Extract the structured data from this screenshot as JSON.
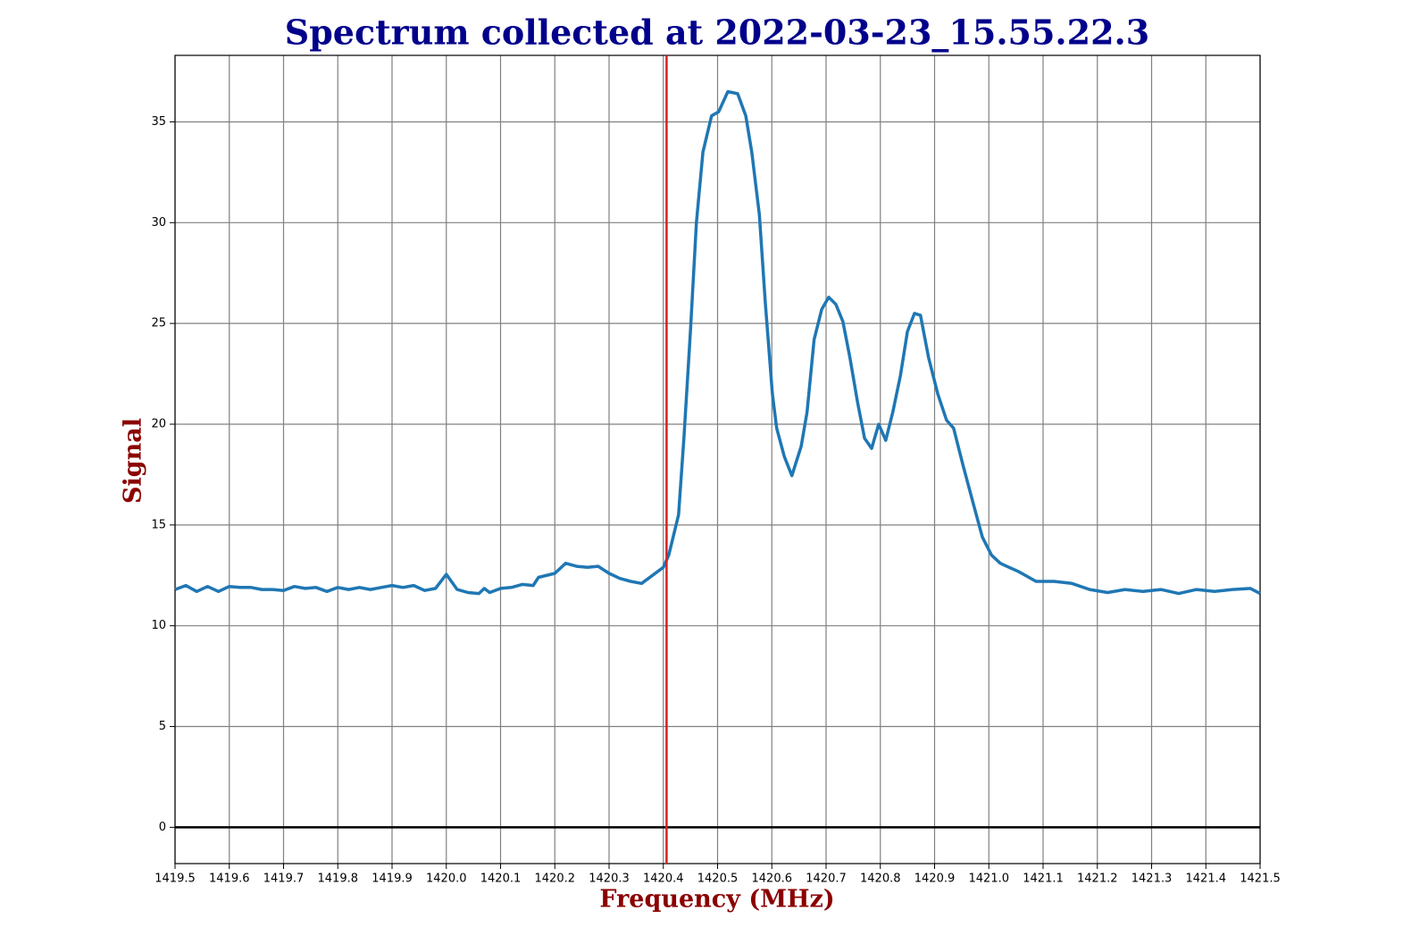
{
  "chart_data": {
    "type": "line",
    "title": "Spectrum collected at 2022-03-23_15.55.22.3",
    "xlabel": "Frequency (MHz)",
    "ylabel": "Signal",
    "color": "#1f77b4",
    "x": [
      1419.5,
      1419.52,
      1419.54,
      1419.56,
      1419.58,
      1419.6,
      1419.62,
      1419.64,
      1419.66,
      1419.68,
      1419.7,
      1419.72,
      1419.74,
      1419.76,
      1419.78,
      1419.8,
      1419.82,
      1419.84,
      1419.86,
      1419.88,
      1419.9,
      1419.92,
      1419.94,
      1419.96,
      1419.98,
      1420.0,
      1420.02,
      1420.04,
      1420.06,
      1420.07,
      1420.08,
      1420.1,
      1420.12,
      1420.14,
      1420.16,
      1420.17,
      1420.2,
      1420.22,
      1420.24,
      1420.26,
      1420.28,
      1420.3,
      1420.32,
      1420.34,
      1420.36,
      1420.38,
      1420.4,
      1420.41,
      1420.428,
      1420.438,
      1420.45,
      1420.461,
      1420.473,
      1420.489,
      1420.502,
      1420.519,
      1420.537,
      1420.552,
      1420.563,
      1420.577,
      1420.588,
      1420.601,
      1420.609,
      1420.623,
      1420.637,
      1420.654,
      1420.665,
      1420.678,
      1420.692,
      1420.705,
      1420.718,
      1420.731,
      1420.744,
      1420.758,
      1420.771,
      1420.784,
      1420.797,
      1420.81,
      1420.823,
      1420.837,
      1420.85,
      1420.863,
      1420.874,
      1420.889,
      1420.906,
      1420.922,
      1420.935,
      1420.952,
      1420.972,
      1420.988,
      1421.005,
      1421.021,
      1421.037,
      1421.054,
      1421.087,
      1421.12,
      1421.153,
      1421.186,
      1421.219,
      1421.251,
      1421.284,
      1421.317,
      1421.35,
      1421.383,
      1421.416,
      1421.449,
      1421.482,
      1421.5
    ],
    "values": [
      11.8,
      12.0,
      11.7,
      11.95,
      11.7,
      11.95,
      11.9,
      11.9,
      11.8,
      11.8,
      11.75,
      11.95,
      11.85,
      11.9,
      11.7,
      11.9,
      11.8,
      11.9,
      11.8,
      11.9,
      12.0,
      11.9,
      12.0,
      11.75,
      11.85,
      12.55,
      11.8,
      11.65,
      11.6,
      11.85,
      11.65,
      11.85,
      11.9,
      12.05,
      12.0,
      12.4,
      12.6,
      13.1,
      12.95,
      12.9,
      12.95,
      12.6,
      12.35,
      12.2,
      12.1,
      12.5,
      12.9,
      13.5,
      15.5,
      19.3,
      24.6,
      30.0,
      33.5,
      35.3,
      35.5,
      36.5,
      36.4,
      35.3,
      33.5,
      30.4,
      26.0,
      21.5,
      19.8,
      18.4,
      17.45,
      18.9,
      20.6,
      24.2,
      25.7,
      26.3,
      25.95,
      25.1,
      23.3,
      21.1,
      19.3,
      18.8,
      20.0,
      19.2,
      20.6,
      22.4,
      24.6,
      25.5,
      25.4,
      23.3,
      21.5,
      20.2,
      19.8,
      18.0,
      16.0,
      14.4,
      13.5,
      13.1,
      12.9,
      12.7,
      12.2,
      12.2,
      12.1,
      11.8,
      11.65,
      11.8,
      11.7,
      11.8,
      11.6,
      11.8,
      11.7,
      11.8,
      11.85,
      11.6
    ],
    "xlim": [
      1419.5,
      1421.5
    ],
    "ylim": [
      -1.8,
      38.3
    ],
    "xticks": [
      1419.5,
      1419.6,
      1419.7,
      1419.8,
      1419.9,
      {
        "value": 1420,
        "label": "1420.0"
      },
      1420.1,
      1420.2,
      1420.3,
      1420.4,
      1420.5,
      1420.6,
      1420.7,
      1420.8,
      1420.9,
      {
        "value": 1421,
        "label": "1421.0"
      },
      1421.1,
      1421.2,
      1421.3,
      1421.4,
      1421.5
    ],
    "yticks": [
      0,
      5,
      10,
      15,
      20,
      25,
      30,
      35
    ],
    "grid": true,
    "vline": {
      "x": 1420.406,
      "color": "#d62020"
    },
    "hline": {
      "y": 0,
      "color": "#000000"
    }
  }
}
